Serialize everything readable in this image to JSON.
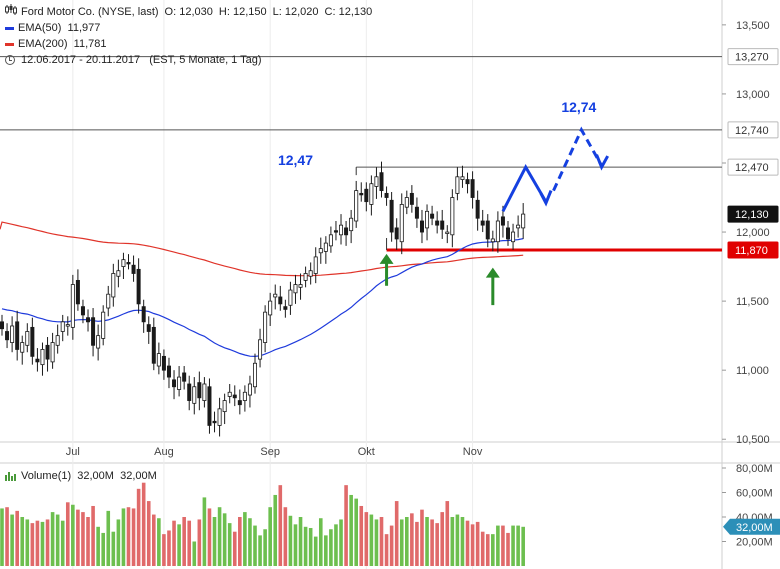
{
  "header": {
    "instrument": "Ford Motor Co. (NYSE, last)",
    "ohlc": [
      {
        "label": "O:",
        "value": "12,030"
      },
      {
        "label": "H:",
        "value": "12,150"
      },
      {
        "label": "L:",
        "value": "12,020"
      },
      {
        "label": "C:",
        "value": "12,130"
      }
    ],
    "indicators": [
      {
        "label": "EMA(50)",
        "value": "11,977",
        "color": "#1f3bdc"
      },
      {
        "label": "EMA(200)",
        "value": "11,781",
        "color": "#e0342a"
      }
    ],
    "period": "12.06.2017 - 20.11.2017",
    "period_info": "(EST, 5 Monate, 1 Tag)"
  },
  "volume_legend": {
    "label": "Volume(1)",
    "value1": "32,00M",
    "value2": "32,00M"
  },
  "colors": {
    "up": "#6dbf4f",
    "down": "#e06a6a",
    "candle": "#1a1a1a",
    "ema50": "#1f3bdc",
    "ema200": "#e0342a",
    "support": "#e00000",
    "arrow_up": "#2a8a2a",
    "forecast": "#1540e0"
  },
  "chart_data": {
    "type": "candlestick",
    "title": "Ford Motor Co. (NYSE, last)",
    "xlabel": "",
    "ylabel": "",
    "x_ticks": [
      "Jul",
      "Aug",
      "Sep",
      "Okt",
      "Nov"
    ],
    "y_ticks": [
      "13,500",
      "13,000",
      "12,500",
      "12,000",
      "11,500",
      "11,000",
      "10,500"
    ],
    "ylim": [
      10.48,
      13.68
    ],
    "grid": false,
    "closes": [
      11.3,
      11.22,
      11.32,
      11.15,
      11.2,
      11.28,
      11.1,
      11.06,
      11.15,
      11.08,
      11.2,
      11.25,
      11.35,
      11.33,
      11.62,
      11.48,
      11.4,
      11.35,
      11.18,
      11.25,
      11.42,
      11.55,
      11.7,
      11.72,
      11.8,
      11.78,
      11.7,
      11.48,
      11.35,
      11.28,
      11.05,
      11.12,
      11.0,
      10.95,
      10.88,
      10.95,
      10.92,
      10.78,
      10.88,
      10.8,
      10.9,
      10.6,
      10.62,
      10.72,
      10.78,
      10.84,
      10.8,
      10.75,
      10.84,
      10.9,
      11.05,
      11.22,
      11.42,
      11.5,
      11.55,
      11.48,
      11.44,
      11.58,
      11.62,
      11.62,
      11.7,
      11.72,
      11.82,
      11.88,
      11.92,
      11.98,
      12.0,
      12.05,
      11.98,
      12.1,
      12.3,
      12.28,
      12.22,
      12.35,
      12.4,
      12.3,
      12.25,
      12.0,
      11.95,
      12.2,
      12.25,
      12.2,
      12.1,
      12.0,
      12.15,
      12.1,
      12.05,
      12.02,
      12.0,
      12.25,
      12.4,
      12.4,
      12.35,
      12.25,
      12.1,
      12.05,
      11.95,
      11.95,
      12.08,
      12.05,
      11.95,
      12.0,
      12.05,
      12.13
    ],
    "volumes_m": [
      47,
      48,
      42,
      45,
      40,
      38,
      35,
      37,
      36,
      38,
      44,
      42,
      37,
      52,
      50,
      46,
      44,
      40,
      49,
      32,
      27,
      45,
      28,
      38,
      47,
      48,
      47,
      63,
      68,
      53,
      42,
      39,
      26,
      29,
      37,
      34,
      40,
      37,
      20,
      38,
      56,
      47,
      40,
      48,
      43,
      35,
      28,
      40,
      44,
      39,
      33,
      25,
      30,
      48,
      58,
      66,
      48,
      41,
      34,
      40,
      32,
      31,
      24,
      39,
      25,
      30,
      34,
      38,
      66,
      58,
      55,
      49,
      44,
      42,
      38,
      40,
      26,
      33,
      53,
      38,
      40,
      43,
      36,
      46,
      40,
      38,
      35,
      44,
      53,
      40,
      42,
      40,
      37,
      34,
      36,
      28,
      26,
      26,
      33,
      33,
      27,
      33,
      33,
      32
    ],
    "volume_ticks": [
      "80,00M",
      "60,00M",
      "40,00M",
      "20,00M"
    ],
    "volume_ylim": [
      0,
      80
    ],
    "ema50_label": "EMA(50)",
    "ema200_label": "EMA(200)",
    "price_markers": [
      {
        "value": 13.27,
        "label": "13,270",
        "style": "gray"
      },
      {
        "value": 12.74,
        "label": "12,740",
        "style": "gray"
      },
      {
        "value": 12.47,
        "label": "12,470",
        "style": "gray"
      },
      {
        "value": 12.13,
        "label": "12,130",
        "style": "black"
      },
      {
        "value": 11.87,
        "label": "11,870",
        "style": "red"
      }
    ],
    "annotations": [
      {
        "text": "12,47",
        "x_index": 70,
        "y": 12.47
      },
      {
        "text": "12,74",
        "x_index": 143,
        "y": 12.74
      }
    ],
    "current_volume_label": "32,00M"
  }
}
